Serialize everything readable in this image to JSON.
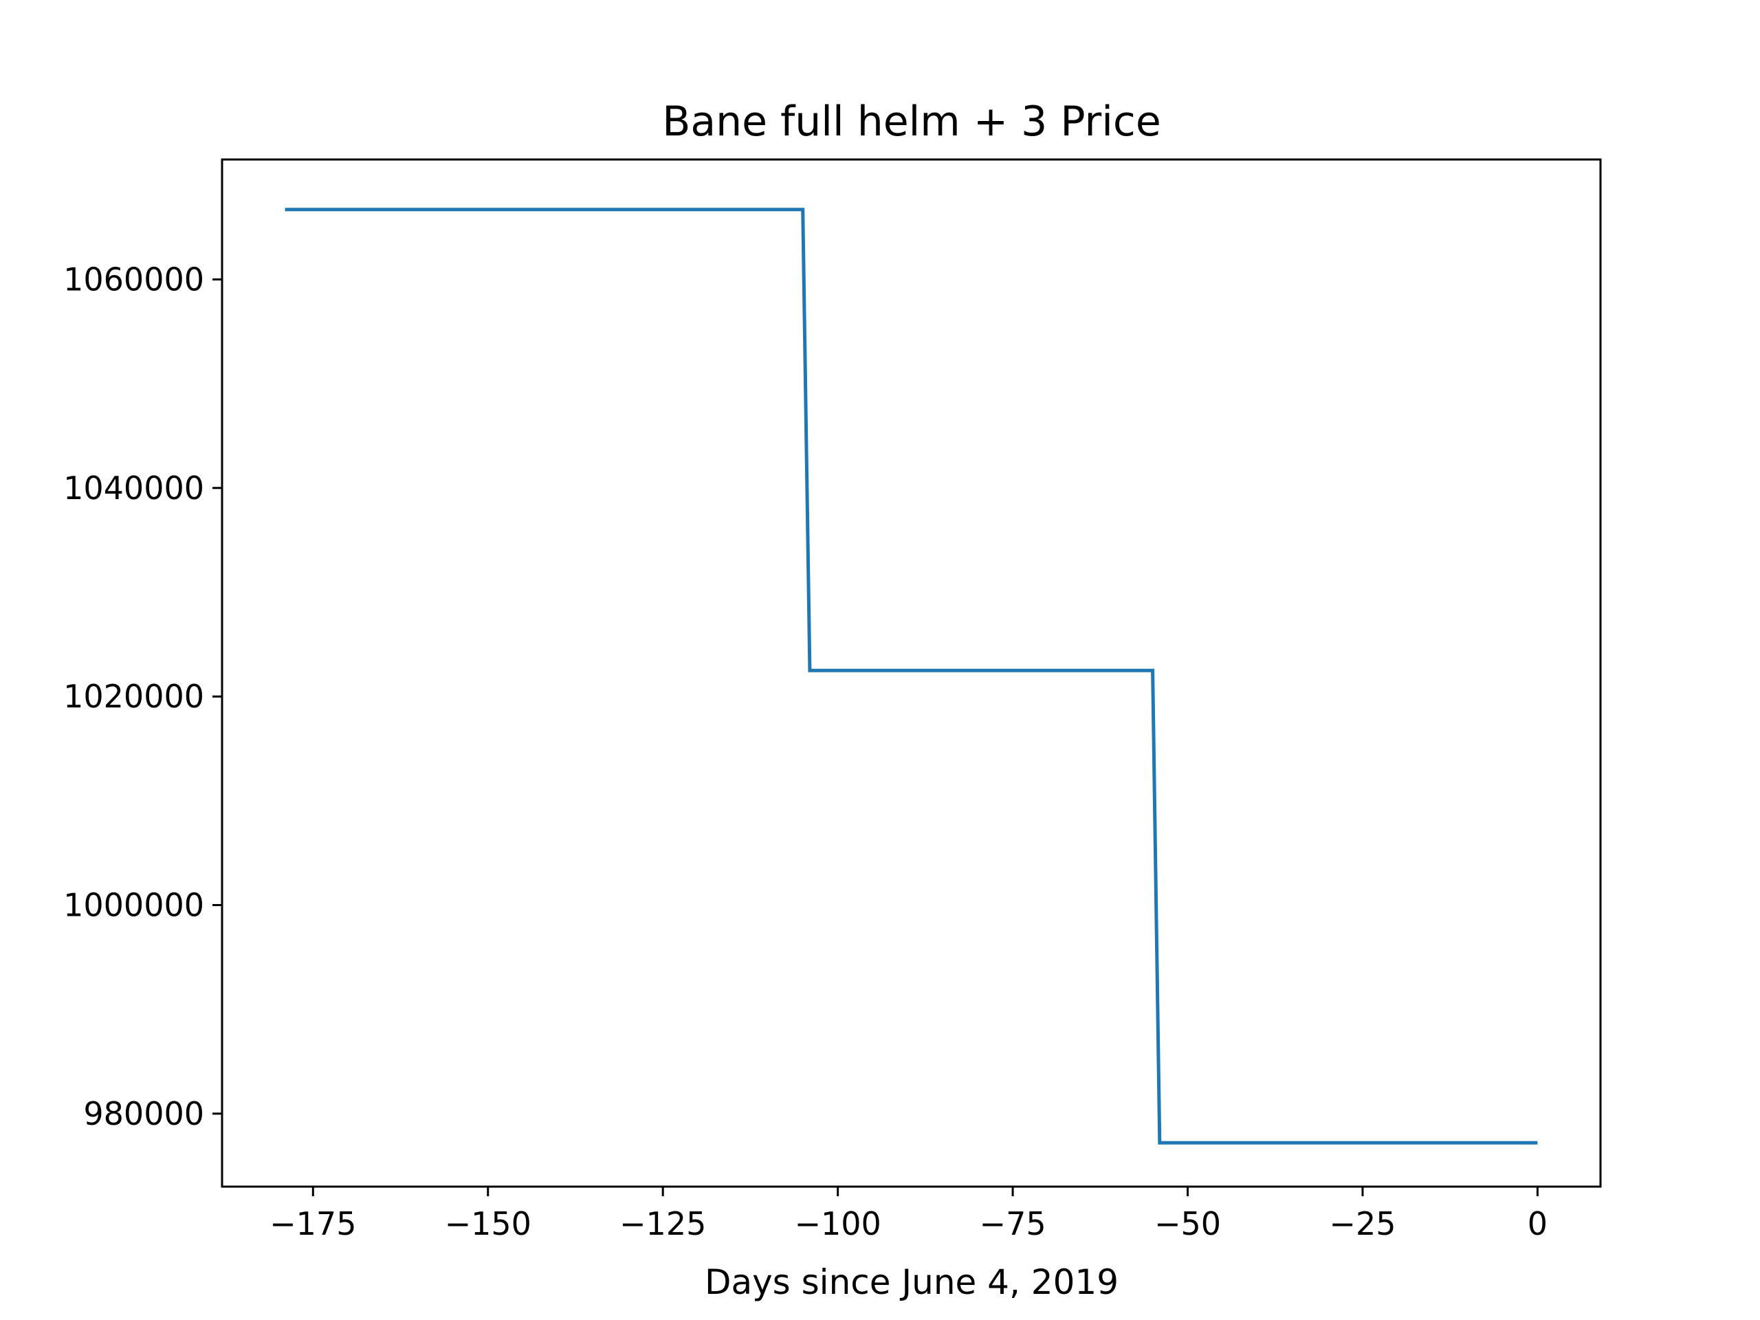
{
  "chart_data": {
    "type": "line",
    "title": "Bane full helm + 3 Price",
    "xlabel": "Days since June 4, 2019",
    "ylabel": "",
    "xlim": [
      -188,
      9
    ],
    "ylim": [
      973000,
      1071500
    ],
    "xticks": [
      -175,
      -150,
      -125,
      -100,
      -75,
      -50,
      -25,
      0
    ],
    "xtick_labels": [
      "−175",
      "−150",
      "−125",
      "−100",
      "−75",
      "−50",
      "−25",
      "0"
    ],
    "yticks": [
      980000,
      1000000,
      1020000,
      1040000,
      1060000
    ],
    "ytick_labels": [
      "980000",
      "1000000",
      "1020000",
      "1040000",
      "1060000"
    ],
    "grid": false,
    "legend": "none",
    "series": [
      {
        "color": "#1f77b4",
        "x": [
          -179,
          -105,
          -104,
          -55,
          -54,
          0
        ],
        "y": [
          1066700,
          1066700,
          1022500,
          1022500,
          977200,
          977200
        ]
      }
    ]
  }
}
